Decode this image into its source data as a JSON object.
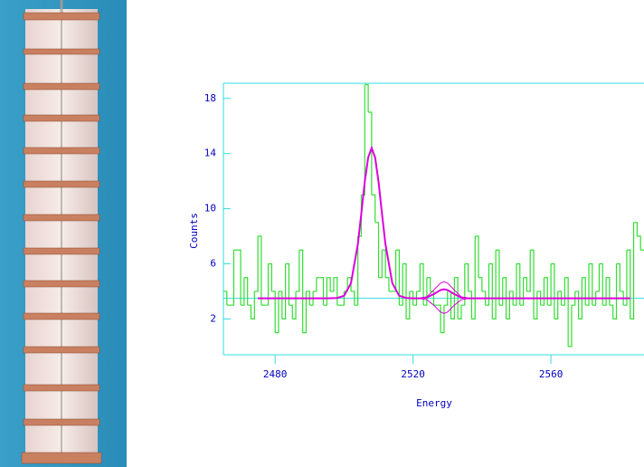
{
  "chart_data": {
    "type": "histogram",
    "x_label": "Energy",
    "y_label": "Counts",
    "xlim": [
      2465,
      2587
    ],
    "ylim": [
      -0.6,
      19.1
    ],
    "xticks": [
      2480,
      2520,
      2560
    ],
    "yticks": [
      2,
      6,
      10,
      14,
      18
    ],
    "axis_color": "#33dddd",
    "baseline": 3.5,
    "bins": [
      2465,
      2466,
      2467,
      2468,
      2469,
      2470,
      2471,
      2472,
      2473,
      2474,
      2475,
      2476,
      2477,
      2478,
      2479,
      2480,
      2481,
      2482,
      2483,
      2484,
      2485,
      2486,
      2487,
      2488,
      2489,
      2490,
      2491,
      2492,
      2493,
      2494,
      2495,
      2496,
      2497,
      2498,
      2499,
      2500,
      2501,
      2502,
      2503,
      2504,
      2505,
      2506,
      2507,
      2508,
      2509,
      2510,
      2511,
      2512,
      2513,
      2514,
      2515,
      2516,
      2517,
      2518,
      2519,
      2520,
      2521,
      2522,
      2523,
      2524,
      2525,
      2526,
      2527,
      2528,
      2529,
      2530,
      2531,
      2532,
      2533,
      2534,
      2535,
      2536,
      2537,
      2538,
      2539,
      2540,
      2541,
      2542,
      2543,
      2544,
      2545,
      2546,
      2547,
      2548,
      2549,
      2550,
      2551,
      2552,
      2553,
      2554,
      2555,
      2556,
      2557,
      2558,
      2559,
      2560,
      2561,
      2562,
      2563,
      2564,
      2565,
      2566,
      2567,
      2568,
      2569,
      2570,
      2571,
      2572,
      2573,
      2574,
      2575,
      2576,
      2577,
      2578,
      2579,
      2580,
      2581,
      2582,
      2583,
      2584,
      2585,
      2586,
      2587
    ],
    "values": [
      4,
      3,
      3,
      7,
      7,
      3,
      5,
      3,
      2,
      4,
      8,
      3,
      3,
      6,
      4,
      1,
      4,
      2,
      6,
      3,
      2,
      4,
      7,
      1,
      4,
      3,
      4,
      5,
      5,
      3,
      5,
      4,
      5,
      3,
      3,
      4,
      5,
      4,
      3,
      8,
      11,
      19,
      17,
      11,
      9,
      5,
      7,
      5,
      4,
      4,
      7,
      3,
      6,
      2,
      4,
      3,
      4,
      6,
      3,
      5,
      4,
      3,
      3,
      1,
      3,
      4,
      2,
      5,
      2,
      3,
      6,
      4,
      2,
      8,
      5,
      4,
      3,
      6,
      2,
      7,
      3,
      5,
      2,
      4,
      3,
      6,
      3,
      5,
      4,
      7,
      2,
      4,
      3,
      5,
      3,
      6,
      2,
      4,
      3,
      5,
      0,
      3,
      4,
      2,
      5,
      3,
      6,
      3,
      4,
      6,
      3,
      5,
      3,
      2,
      6,
      4,
      3,
      7,
      2,
      9,
      8,
      7
    ],
    "color": "#33dd33",
    "fits": [
      {
        "color": "#dd00dd",
        "x": [
          2475,
          2490,
          2495,
          2498,
          2500,
          2502,
          2504,
          2505,
          2506,
          2507,
          2508,
          2509,
          2510,
          2511,
          2512,
          2514,
          2516,
          2518,
          2520,
          2522,
          2524,
          2526,
          2528,
          2529,
          2530,
          2532,
          2534,
          2536,
          2540,
          2583
        ],
        "values": [
          3.5,
          3.5,
          3.5,
          3.52,
          3.68,
          4.59,
          7.43,
          9.64,
          11.95,
          13.72,
          14.4,
          13.72,
          11.95,
          9.64,
          7.43,
          4.59,
          3.68,
          3.52,
          3.5,
          3.5,
          3.55,
          3.8,
          4.1,
          4.15,
          4.1,
          3.8,
          3.55,
          3.5,
          3.5,
          3.5
        ]
      },
      {
        "color": "#dd00dd",
        "x": [
          2520,
          2522,
          2524,
          2526,
          2528,
          2529,
          2530,
          2532,
          2534,
          2536,
          2538
        ],
        "values": [
          3.5,
          3.52,
          3.6,
          4.1,
          4.6,
          4.7,
          4.6,
          4.1,
          3.6,
          3.52,
          3.5
        ]
      },
      {
        "color": "#dd00dd",
        "x": [
          2520,
          2522,
          2524,
          2526,
          2528,
          2529,
          2530,
          2532,
          2534,
          2536,
          2538
        ],
        "values": [
          3.5,
          3.48,
          3.4,
          3.0,
          2.5,
          2.4,
          2.5,
          3.0,
          3.4,
          3.48,
          3.5
        ]
      }
    ]
  }
}
